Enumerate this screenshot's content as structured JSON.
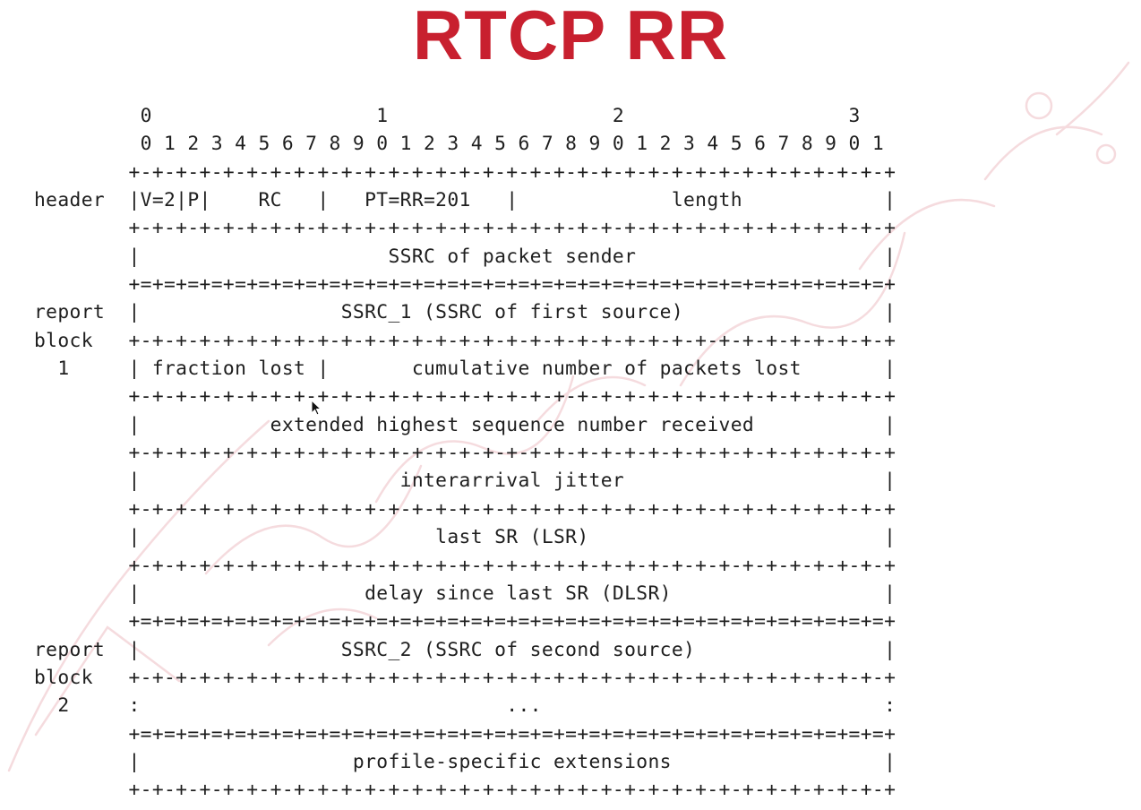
{
  "title": "RTCP RR",
  "colors": {
    "title": "#c8202f",
    "text": "#1e1e1e",
    "background": "#ffffff"
  },
  "diagram": {
    "lines": [
      "         0                   1                   2                   3",
      "         0 1 2 3 4 5 6 7 8 9 0 1 2 3 4 5 6 7 8 9 0 1 2 3 4 5 6 7 8 9 0 1",
      "        +-+-+-+-+-+-+-+-+-+-+-+-+-+-+-+-+-+-+-+-+-+-+-+-+-+-+-+-+-+-+-+-+",
      "header  |V=2|P|    RC   |   PT=RR=201   |             length            |",
      "        +-+-+-+-+-+-+-+-+-+-+-+-+-+-+-+-+-+-+-+-+-+-+-+-+-+-+-+-+-+-+-+-+",
      "        |                     SSRC of packet sender                     |",
      "        +=+=+=+=+=+=+=+=+=+=+=+=+=+=+=+=+=+=+=+=+=+=+=+=+=+=+=+=+=+=+=+=+",
      "report  |                 SSRC_1 (SSRC of first source)                 |",
      "block   +-+-+-+-+-+-+-+-+-+-+-+-+-+-+-+-+-+-+-+-+-+-+-+-+-+-+-+-+-+-+-+-+",
      "  1     | fraction lost |       cumulative number of packets lost       |",
      "        +-+-+-+-+-+-+-+-+-+-+-+-+-+-+-+-+-+-+-+-+-+-+-+-+-+-+-+-+-+-+-+-+",
      "        |           extended highest sequence number received           |",
      "        +-+-+-+-+-+-+-+-+-+-+-+-+-+-+-+-+-+-+-+-+-+-+-+-+-+-+-+-+-+-+-+-+",
      "        |                      interarrival jitter                      |",
      "        +-+-+-+-+-+-+-+-+-+-+-+-+-+-+-+-+-+-+-+-+-+-+-+-+-+-+-+-+-+-+-+-+",
      "        |                         last SR (LSR)                         |",
      "        +-+-+-+-+-+-+-+-+-+-+-+-+-+-+-+-+-+-+-+-+-+-+-+-+-+-+-+-+-+-+-+-+",
      "        |                   delay since last SR (DLSR)                  |",
      "        +=+=+=+=+=+=+=+=+=+=+=+=+=+=+=+=+=+=+=+=+=+=+=+=+=+=+=+=+=+=+=+=+",
      "report  |                 SSRC_2 (SSRC of second source)                |",
      "block   +-+-+-+-+-+-+-+-+-+-+-+-+-+-+-+-+-+-+-+-+-+-+-+-+-+-+-+-+-+-+-+-+",
      "  2     :                               ...                             :",
      "        +=+=+=+=+=+=+=+=+=+=+=+=+=+=+=+=+=+=+=+=+=+=+=+=+=+=+=+=+=+=+=+=+",
      "        |                  profile-specific extensions                  |",
      "        +-+-+-+-+-+-+-+-+-+-+-+-+-+-+-+-+-+-+-+-+-+-+-+-+-+-+-+-+-+-+-+-+"
    ]
  }
}
